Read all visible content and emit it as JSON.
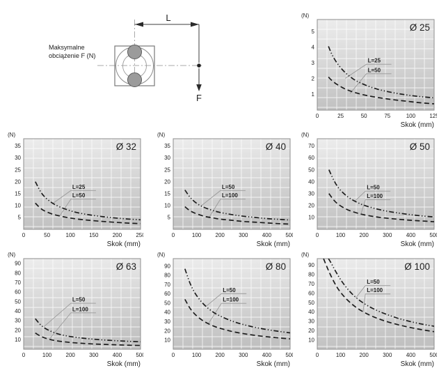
{
  "diagram": {
    "caption_line1": "Maksymalne",
    "caption_line2": "obciążenie F (N)",
    "dim_label": "L",
    "force_label": "F"
  },
  "colors": {
    "curve": "#1c1c1c",
    "grid_line": "#ffffff",
    "plot_border": "#8d8d8d",
    "plot_bg_top": "#ededed",
    "plot_bg_bottom": "#c1c1c1",
    "leader_line": "#999999",
    "text": "#1d1d1d",
    "diagram_line": "#3c3c3c",
    "centerline": "#aaaaaa",
    "roller_fill": "#9b9b9b"
  },
  "chart_data": [
    {
      "type": "line",
      "title": "Ø 25",
      "ylabel": "(N)",
      "xlabel": "Skok (mm)",
      "xlim": [
        0,
        125
      ],
      "ylim": [
        0,
        5.75
      ],
      "xticks": [
        0,
        25,
        50,
        75,
        100,
        125
      ],
      "yticks": [
        1,
        2,
        3,
        4,
        5
      ],
      "grid": "uniform",
      "legend": "inline-labels",
      "series": [
        {
          "name": "L=25",
          "style": "dash-dot-dot",
          "points": [
            [
              12,
              4.05
            ],
            [
              16,
              3.5
            ],
            [
              22,
              2.92
            ],
            [
              30,
              2.38
            ],
            [
              40,
              1.92
            ],
            [
              52,
              1.58
            ],
            [
              65,
              1.32
            ],
            [
              80,
              1.12
            ],
            [
              95,
              0.97
            ],
            [
              110,
              0.86
            ],
            [
              125,
              0.78
            ]
          ],
          "label_at": [
            54,
            3.02
          ],
          "leader_to": [
            30,
            2.02
          ]
        },
        {
          "name": "L=50",
          "style": "dashed",
          "points": [
            [
              12,
              2.1
            ],
            [
              16,
              1.86
            ],
            [
              22,
              1.6
            ],
            [
              30,
              1.34
            ],
            [
              40,
              1.12
            ],
            [
              52,
              0.94
            ],
            [
              65,
              0.8
            ],
            [
              80,
              0.67
            ],
            [
              95,
              0.57
            ],
            [
              110,
              0.47
            ],
            [
              125,
              0.4
            ]
          ],
          "label_at": [
            54,
            2.42
          ],
          "leader_to": [
            35,
            1.05
          ]
        }
      ]
    },
    {
      "type": "line",
      "title": "Ø 32",
      "ylabel": "(N)",
      "xlabel": "Skok (mm)",
      "xlim": [
        0,
        250
      ],
      "ylim": [
        0,
        38
      ],
      "xticks": [
        0,
        50,
        100,
        150,
        200,
        250
      ],
      "yticks": [
        5,
        10,
        15,
        20,
        25,
        30,
        35
      ],
      "grid": "uniform",
      "legend": "inline-labels",
      "series": [
        {
          "name": "L=25",
          "style": "dash-dot-dot",
          "points": [
            [
              25,
              20
            ],
            [
              35,
              16.2
            ],
            [
              45,
              13.6
            ],
            [
              60,
              11.2
            ],
            [
              75,
              9.6
            ],
            [
              95,
              8.1
            ],
            [
              115,
              7
            ],
            [
              140,
              6.1
            ],
            [
              170,
              5.3
            ],
            [
              200,
              4.7
            ],
            [
              225,
              4.3
            ],
            [
              250,
              4
            ]
          ],
          "label_at": [
            104,
            17
          ],
          "leader_to": [
            62,
            10.8
          ]
        },
        {
          "name": "L=50",
          "style": "dashed",
          "points": [
            [
              25,
              11
            ],
            [
              35,
              9
            ],
            [
              45,
              7.7
            ],
            [
              60,
              6.5
            ],
            [
              75,
              5.7
            ],
            [
              95,
              4.9
            ],
            [
              115,
              4.3
            ],
            [
              140,
              3.8
            ],
            [
              170,
              3.3
            ],
            [
              200,
              2.9
            ],
            [
              225,
              2.6
            ],
            [
              250,
              2.4
            ]
          ],
          "label_at": [
            104,
            13.4
          ],
          "leader_to": [
            77,
            5.6
          ]
        }
      ]
    },
    {
      "type": "line",
      "title": "Ø 40",
      "ylabel": "(N)",
      "xlabel": "Skok (mm)",
      "xlim": [
        0,
        500
      ],
      "ylim": [
        0,
        38
      ],
      "xticks": [
        0,
        100,
        200,
        300,
        400,
        500
      ],
      "yticks": [
        5,
        10,
        15,
        20,
        25,
        30,
        35
      ],
      "grid": "uniform",
      "legend": "inline-labels",
      "series": [
        {
          "name": "L=50",
          "style": "dash-dot-dot",
          "points": [
            [
              50,
              16.5
            ],
            [
              70,
              13.7
            ],
            [
              90,
              11.7
            ],
            [
              115,
              10
            ],
            [
              140,
              8.9
            ],
            [
              170,
              7.9
            ],
            [
              200,
              7.1
            ],
            [
              250,
              6.2
            ],
            [
              300,
              5.5
            ],
            [
              350,
              5
            ],
            [
              400,
              4.5
            ],
            [
              450,
              4.2
            ],
            [
              500,
              3.9
            ]
          ],
          "label_at": [
            208,
            17
          ],
          "leader_to": [
            120,
            9.9
          ]
        },
        {
          "name": "L=100",
          "style": "dashed",
          "points": [
            [
              50,
              9.5
            ],
            [
              70,
              7.9
            ],
            [
              90,
              6.9
            ],
            [
              115,
              6
            ],
            [
              140,
              5.3
            ],
            [
              170,
              4.8
            ],
            [
              200,
              4.3
            ],
            [
              250,
              3.8
            ],
            [
              300,
              3.3
            ],
            [
              350,
              3
            ],
            [
              400,
              2.7
            ],
            [
              450,
              2.4
            ],
            [
              500,
              2.2
            ]
          ],
          "label_at": [
            208,
            13.4
          ],
          "leader_to": [
            152,
            4.8
          ]
        }
      ]
    },
    {
      "type": "line",
      "title": "Ø 50",
      "ylabel": "(N)",
      "xlabel": "Skok (mm)",
      "xlim": [
        0,
        500
      ],
      "ylim": [
        0,
        76
      ],
      "xticks": [
        0,
        100,
        200,
        300,
        400,
        500
      ],
      "yticks": [
        10,
        20,
        30,
        40,
        50,
        60,
        70
      ],
      "grid": "uniform",
      "legend": "inline-labels",
      "series": [
        {
          "name": "L=50",
          "style": "dash-dot-dot",
          "points": [
            [
              50,
              50
            ],
            [
              70,
              41.5
            ],
            [
              90,
              35
            ],
            [
              115,
              29.8
            ],
            [
              140,
              26
            ],
            [
              170,
              22.7
            ],
            [
              200,
              20.2
            ],
            [
              250,
              17.3
            ],
            [
              300,
              15.2
            ],
            [
              350,
              13.6
            ],
            [
              400,
              12.3
            ],
            [
              450,
              11.2
            ],
            [
              500,
              10.4
            ]
          ],
          "label_at": [
            212,
            33.5
          ],
          "leader_to": [
            160,
            23.5
          ]
        },
        {
          "name": "L=100",
          "style": "dashed",
          "points": [
            [
              50,
              30
            ],
            [
              70,
              24.7
            ],
            [
              90,
              21
            ],
            [
              115,
              17.9
            ],
            [
              140,
              15.6
            ],
            [
              170,
              13.7
            ],
            [
              200,
              12.2
            ],
            [
              250,
              10.5
            ],
            [
              300,
              9.3
            ],
            [
              350,
              8.4
            ],
            [
              400,
              7.6
            ],
            [
              450,
              7
            ],
            [
              500,
              6.4
            ]
          ],
          "label_at": [
            212,
            26.3
          ],
          "leader_to": [
            186,
            12.3
          ]
        }
      ]
    },
    {
      "type": "line",
      "title": "Ø 63",
      "ylabel": "(N)",
      "xlabel": "Skok (mm)",
      "xlim": [
        0,
        500
      ],
      "ylim": [
        0,
        95
      ],
      "xticks": [
        0,
        100,
        200,
        300,
        400,
        500
      ],
      "yticks": [
        10,
        20,
        30,
        40,
        50,
        60,
        70,
        80,
        90
      ],
      "grid": "uniform",
      "legend": "inline-labels",
      "series": [
        {
          "name": "L=50",
          "style": "dash-dot-dot",
          "points": [
            [
              50,
              32
            ],
            [
              70,
              26.2
            ],
            [
              90,
              22.2
            ],
            [
              115,
              19
            ],
            [
              140,
              16.6
            ],
            [
              170,
              14.7
            ],
            [
              200,
              13.3
            ],
            [
              250,
              11.7
            ],
            [
              300,
              10.5
            ],
            [
              350,
              9.6
            ],
            [
              400,
              8.9
            ],
            [
              450,
              8.3
            ],
            [
              500,
              7.8
            ]
          ],
          "label_at": [
            208,
            50
          ],
          "leader_to": [
            86,
            23.5
          ]
        },
        {
          "name": "L=100",
          "style": "dashed",
          "points": [
            [
              50,
              17
            ],
            [
              70,
              14
            ],
            [
              90,
              11.9
            ],
            [
              115,
              10.1
            ],
            [
              140,
              8.9
            ],
            [
              170,
              7.9
            ],
            [
              200,
              7.1
            ],
            [
              250,
              6.2
            ],
            [
              300,
              5.5
            ],
            [
              350,
              5
            ],
            [
              400,
              4.6
            ],
            [
              450,
              4.2
            ],
            [
              500,
              3.9
            ]
          ],
          "label_at": [
            208,
            40
          ],
          "leader_to": [
            110,
            10.6
          ]
        }
      ]
    },
    {
      "type": "line",
      "title": "Ø 80",
      "ylabel": "(N)",
      "xlabel": "Skok (mm)",
      "xlim": [
        0,
        500
      ],
      "ylim": [
        0,
        98
      ],
      "xticks": [
        0,
        100,
        200,
        300,
        400,
        500
      ],
      "yticks": [
        10,
        20,
        30,
        40,
        50,
        60,
        70,
        80,
        90
      ],
      "grid": "uniform",
      "legend": "inline-labels",
      "series": [
        {
          "name": "L=50",
          "style": "dash-dot-dot",
          "points": [
            [
              50,
              87
            ],
            [
              70,
              72.5
            ],
            [
              90,
              62
            ],
            [
              115,
              53
            ],
            [
              140,
              46.3
            ],
            [
              170,
              40.3
            ],
            [
              200,
              36
            ],
            [
              250,
              30.6
            ],
            [
              300,
              26.7
            ],
            [
              350,
              23.7
            ],
            [
              400,
              21.3
            ],
            [
              450,
              19.4
            ],
            [
              500,
              17.7
            ]
          ],
          "label_at": [
            212,
            62
          ],
          "leader_to": [
            140,
            46.3
          ]
        },
        {
          "name": "L=100",
          "style": "dashed",
          "points": [
            [
              50,
              54
            ],
            [
              70,
              45
            ],
            [
              90,
              38.6
            ],
            [
              115,
              33
            ],
            [
              140,
              28.9
            ],
            [
              170,
              25.3
            ],
            [
              200,
              22.7
            ],
            [
              250,
              19.3
            ],
            [
              300,
              16.9
            ],
            [
              350,
              15
            ],
            [
              400,
              13.5
            ],
            [
              450,
              12.3
            ],
            [
              500,
              11.2
            ]
          ],
          "label_at": [
            212,
            51.5
          ],
          "leader_to": [
            150,
            27.5
          ]
        }
      ]
    },
    {
      "type": "line",
      "title": "Ø 100",
      "ylabel": "(N)",
      "xlabel": "Skok (mm)",
      "xlim": [
        0,
        500
      ],
      "ylim": [
        0,
        97
      ],
      "xticks": [
        0,
        100,
        200,
        300,
        400,
        500
      ],
      "yticks": [
        10,
        20,
        30,
        40,
        50,
        60,
        70,
        80,
        90
      ],
      "grid": "uniform",
      "legend": "inline-labels",
      "series": [
        {
          "name": "L=50",
          "style": "dash-dot-dot",
          "points": [
            [
              48,
              97
            ],
            [
              60,
              92
            ],
            [
              75,
              85
            ],
            [
              95,
              76.5
            ],
            [
              120,
              67.5
            ],
            [
              150,
              59
            ],
            [
              180,
              52.5
            ],
            [
              220,
              46
            ],
            [
              260,
              41
            ],
            [
              300,
              37
            ],
            [
              350,
              32.8
            ],
            [
              400,
              29.5
            ],
            [
              450,
              26.8
            ],
            [
              500,
              24.6
            ]
          ],
          "label_at": [
            212,
            70
          ],
          "leader_to": [
            165,
            55
          ]
        },
        {
          "name": "L=100",
          "style": "dashed",
          "points": [
            [
              27,
              97
            ],
            [
              40,
              89
            ],
            [
              55,
              80.5
            ],
            [
              75,
              70.5
            ],
            [
              95,
              62.5
            ],
            [
              120,
              55
            ],
            [
              150,
              48
            ],
            [
              180,
              42.5
            ],
            [
              220,
              37
            ],
            [
              260,
              32.8
            ],
            [
              300,
              29.4
            ],
            [
              350,
              26
            ],
            [
              400,
              23.2
            ],
            [
              450,
              20.8
            ],
            [
              500,
              18.8
            ]
          ],
          "label_at": [
            212,
            61
          ],
          "leader_to": [
            196,
            40
          ]
        }
      ]
    }
  ]
}
